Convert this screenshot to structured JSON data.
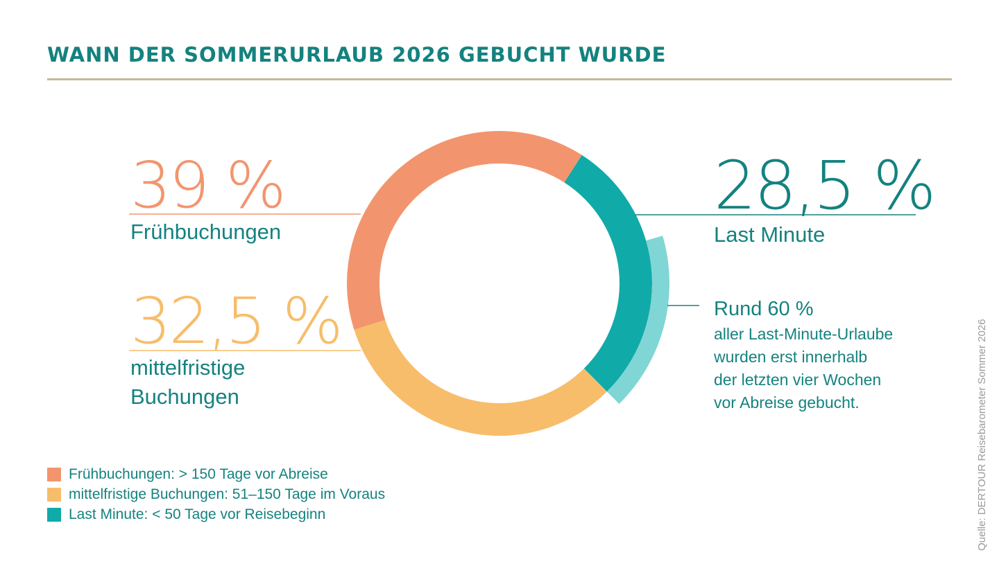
{
  "title": "WANN DER SOMMERURLAUB 2026 GEBUCHT WURDE",
  "chart_data": {
    "type": "pie",
    "style": "donut",
    "segments": [
      {
        "name": "Frühbuchungen",
        "value": 39,
        "value_label": "39 %",
        "label": "Frühbuchungen",
        "color": "#f2956e"
      },
      {
        "name": "mittelfristige Buchungen",
        "value": 32.5,
        "value_label": "32,5 %",
        "label_lines": [
          "mittelfristige",
          "Buchungen"
        ],
        "color": "#f7bd6b"
      },
      {
        "name": "Last Minute",
        "value": 28.5,
        "value_label": "28,5 %",
        "label": "Last Minute",
        "color": "#10aaa9"
      }
    ],
    "sub_segment": {
      "parent": "Last Minute",
      "share_of_parent": 60,
      "color": "#80d6d4"
    },
    "annotation": {
      "headline": "Rund 60 %",
      "lines": [
        "aller Last-Minute-Urlaube",
        "wurden erst innerhalb",
        "der letzten vier Wochen",
        "vor Abreise gebucht."
      ]
    },
    "legend": [
      {
        "label": "Frühbuchungen: > 150 Tage vor Abreise",
        "color": "#f2956e"
      },
      {
        "label": "mittelfristige Buchungen: 51–150 Tage im Voraus",
        "color": "#f7bd6b"
      },
      {
        "label": "Last Minute: < 50 Tage vor Reisebeginn",
        "color": "#10aaa9"
      }
    ]
  },
  "source": "Quelle: DERTOUR Reisebarometer Sommer 2026"
}
